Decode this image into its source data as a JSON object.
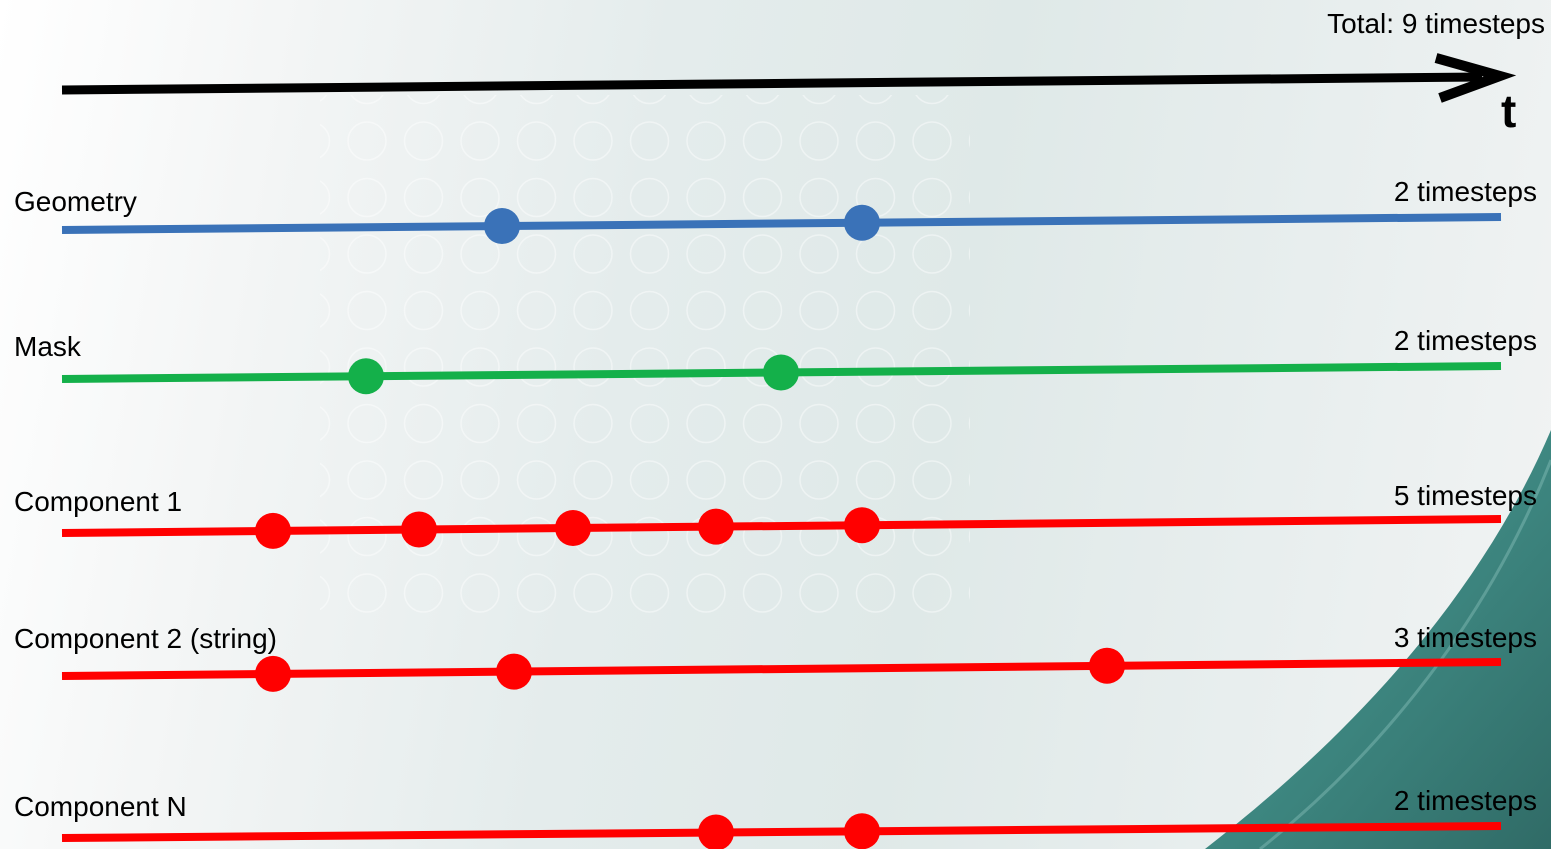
{
  "header": {
    "total_label": "Total: 9 timesteps",
    "axis_label": "t"
  },
  "tracks": [
    {
      "name": "Geometry",
      "count_label": "2 timesteps",
      "color": "#3a72b8",
      "timesteps": [
        4,
        6
      ]
    },
    {
      "name": "Mask",
      "count_label": "2 timesteps",
      "color": "#14b04a",
      "timesteps": [
        3,
        5
      ]
    },
    {
      "name": "Component 1",
      "count_label": "5 timesteps",
      "color": "#ff0000",
      "timesteps": [
        1,
        2,
        3,
        5,
        6
      ]
    },
    {
      "name": "Component 2 (string)",
      "count_label": "3 timesteps",
      "color": "#ff0000",
      "timesteps": [
        1,
        4,
        7
      ]
    },
    {
      "name": "Component N",
      "count_label": "2 timesteps",
      "color": "#ff0000",
      "timesteps": [
        5,
        6
      ]
    }
  ],
  "theme": {
    "axis_color": "#000000",
    "accent_teal": "#2f7f78"
  }
}
